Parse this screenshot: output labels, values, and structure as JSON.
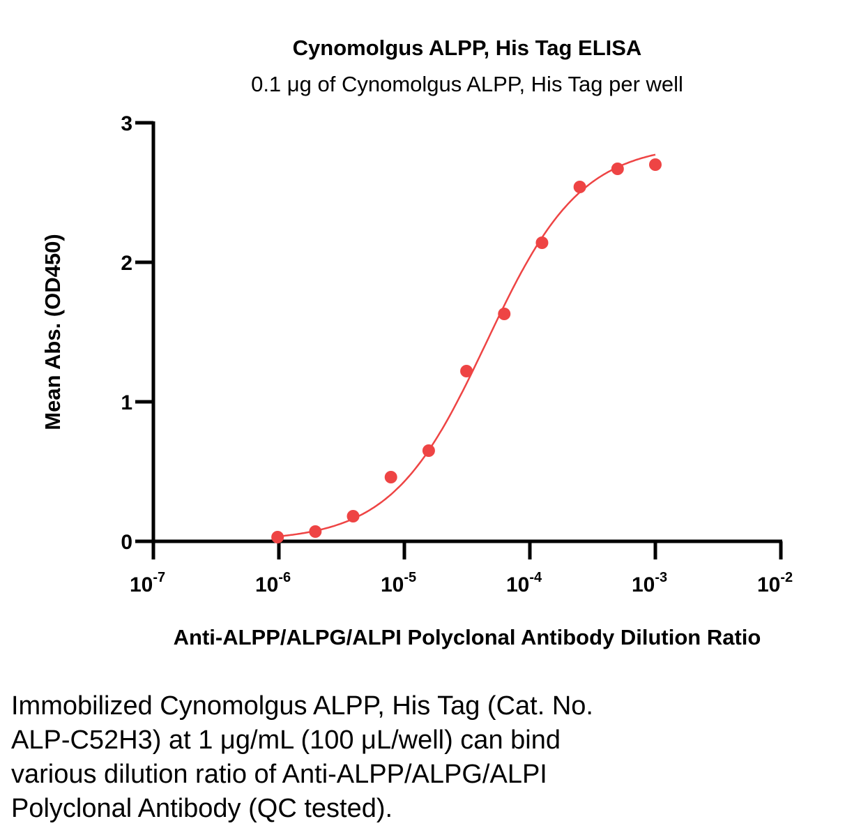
{
  "chart_data": {
    "type": "scatter",
    "title": "Cynomolgus ALPP, His Tag ELISA",
    "subtitle": "0.1 μg of Cynomolgus ALPP, His Tag per well",
    "xlabel": "Anti-ALPP/ALPG/ALPI Polyclonal Antibody Dilution Ratio",
    "ylabel": "Mean Abs. (OD450)",
    "x_scale": "log",
    "xlim": [
      1e-07,
      0.01
    ],
    "ylim": [
      0,
      3
    ],
    "x_ticks": [
      {
        "base": "10",
        "exp": "-7",
        "value": 1e-07
      },
      {
        "base": "10",
        "exp": "-6",
        "value": 1e-06
      },
      {
        "base": "10",
        "exp": "-5",
        "value": 1e-05
      },
      {
        "base": "10",
        "exp": "-4",
        "value": 0.0001
      },
      {
        "base": "10",
        "exp": "-3",
        "value": 0.001
      },
      {
        "base": "10",
        "exp": "-2",
        "value": 0.01
      }
    ],
    "y_ticks": [
      "0",
      "1",
      "2",
      "3"
    ],
    "grid": false,
    "color": "#ee4444",
    "points": [
      {
        "x": 9.766e-07,
        "y": 0.03
      },
      {
        "x": 1.953e-06,
        "y": 0.07
      },
      {
        "x": 3.906e-06,
        "y": 0.18
      },
      {
        "x": 7.813e-06,
        "y": 0.46
      },
      {
        "x": 1.563e-05,
        "y": 0.65
      },
      {
        "x": 3.125e-05,
        "y": 1.22
      },
      {
        "x": 6.25e-05,
        "y": 1.63
      },
      {
        "x": 0.000125,
        "y": 2.14
      },
      {
        "x": 0.00025,
        "y": 2.54
      },
      {
        "x": 0.0005,
        "y": 2.67
      },
      {
        "x": 0.001,
        "y": 2.7
      }
    ],
    "fit": {
      "type": "4PL sigmoid",
      "bottom": 0.0,
      "top": 2.85,
      "ec50": 4.5e-05,
      "hill": 1.15
    }
  },
  "caption_lines": [
    "Immobilized Cynomolgus ALPP, His Tag (Cat. No.",
    "ALP-C52H3) at 1 μg/mL (100 μL/well) can bind",
    "various dilution ratio of Anti-ALPP/ALPG/ALPI",
    "Polyclonal Antibody (QC tested)."
  ]
}
